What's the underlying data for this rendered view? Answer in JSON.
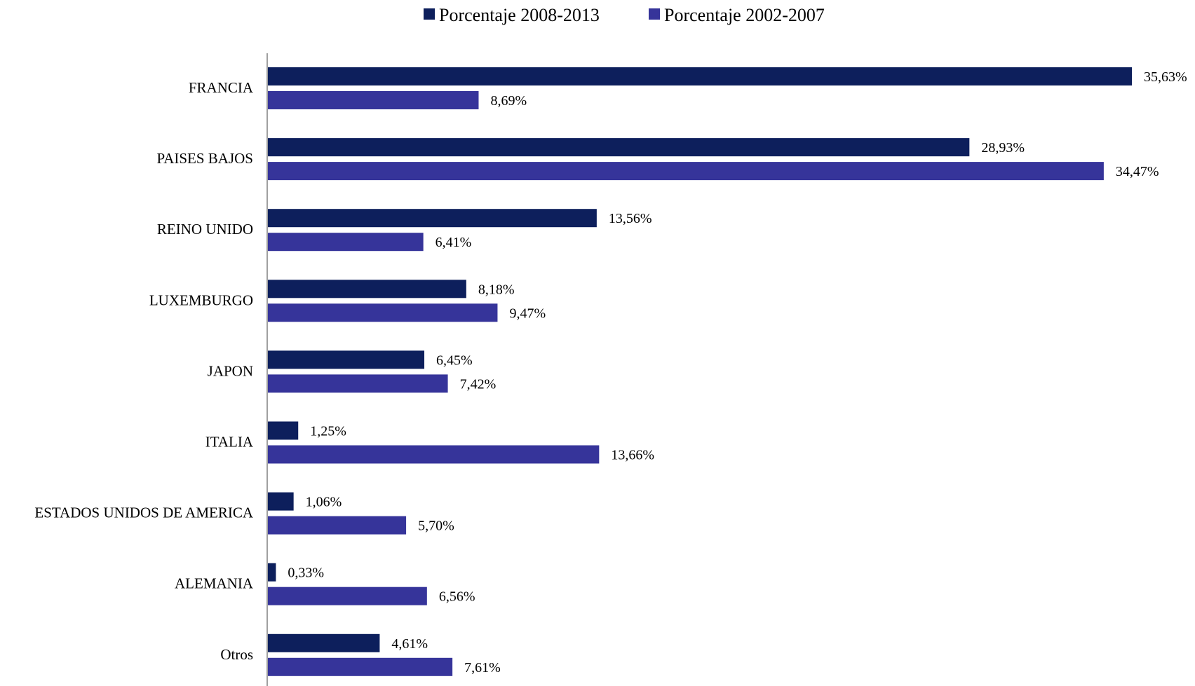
{
  "chart_data": {
    "type": "bar",
    "orientation": "horizontal",
    "categories": [
      "FRANCIA",
      "PAISES BAJOS",
      "REINO UNIDO",
      "LUXEMBURGO",
      "JAPON",
      "ITALIA",
      "ESTADOS UNIDOS DE AMERICA",
      "ALEMANIA",
      "Otros"
    ],
    "series": [
      {
        "name": "Porcentaje 2008-2013",
        "color": "#0d1f5c",
        "values": [
          35.63,
          28.93,
          13.56,
          8.18,
          6.45,
          1.25,
          1.06,
          0.33,
          4.61
        ],
        "labels": [
          "35,63%",
          "28,93%",
          "13,56%",
          "8,18%",
          "6,45%",
          "1,25%",
          "1,06%",
          "0,33%",
          "4,61%"
        ]
      },
      {
        "name": "Porcentaje 2002-2007",
        "color": "#36349a",
        "values": [
          8.69,
          34.47,
          6.41,
          9.47,
          7.42,
          13.66,
          5.7,
          6.56,
          7.61
        ],
        "labels": [
          "8,69%",
          "34,47%",
          "6,41%",
          "9,47%",
          "7,42%",
          "13,66%",
          "5,70%",
          "6,56%",
          "7,61%"
        ]
      }
    ],
    "xlim": [
      0,
      35.63
    ],
    "grid": false,
    "legend_position": "top-center"
  }
}
